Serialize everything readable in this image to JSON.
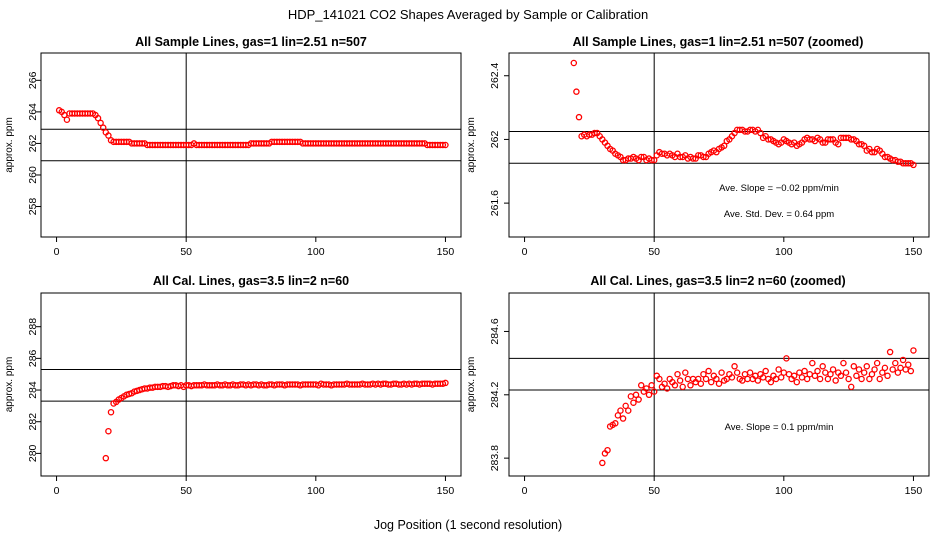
{
  "title": "HDP_141021  CO2 Shapes Averaged by Sample or Calibration",
  "xlabel": "Jog Position (1 second resolution)",
  "colors": {
    "points": "#ff0000",
    "axes": "#000000"
  },
  "chart_data": [
    {
      "type": "scatter",
      "title": "All Sample Lines, gas=1 lin=2.51 n=507",
      "ylabel": "approx. ppm",
      "xlim": [
        0,
        150
      ],
      "ylim": [
        256.5,
        267.3
      ],
      "xticks": [
        0,
        50,
        100,
        150
      ],
      "yticks": [
        258,
        260,
        262,
        264,
        266
      ],
      "hlines": [
        262.9,
        260.9
      ],
      "vlines": [
        50
      ],
      "x": [
        1,
        2,
        3,
        4,
        5,
        6,
        7,
        8,
        9,
        10,
        11,
        12,
        13,
        14,
        15,
        16,
        17,
        18,
        19,
        20,
        21,
        22,
        23,
        24,
        25,
        26,
        27,
        28,
        29,
        30,
        31,
        32,
        33,
        34,
        35,
        36,
        37,
        38,
        39,
        40,
        41,
        42,
        43,
        44,
        45,
        46,
        47,
        48,
        49,
        50,
        51,
        52,
        53,
        54,
        55,
        56,
        57,
        58,
        59,
        60,
        61,
        62,
        63,
        64,
        65,
        66,
        67,
        68,
        69,
        70,
        71,
        72,
        73,
        74,
        75,
        76,
        77,
        78,
        79,
        80,
        81,
        82,
        83,
        84,
        85,
        86,
        87,
        88,
        89,
        90,
        91,
        92,
        93,
        94,
        95,
        96,
        97,
        98,
        99,
        100,
        101,
        102,
        103,
        104,
        105,
        106,
        107,
        108,
        109,
        110,
        111,
        112,
        113,
        114,
        115,
        116,
        117,
        118,
        119,
        120,
        121,
        122,
        123,
        124,
        125,
        126,
        127,
        128,
        129,
        130,
        131,
        132,
        133,
        134,
        135,
        136,
        137,
        138,
        139,
        140,
        141,
        142,
        143,
        144,
        145,
        146,
        147,
        148,
        149,
        150
      ],
      "y": [
        264.1,
        264.0,
        263.8,
        263.5,
        263.9,
        263.9,
        263.9,
        263.9,
        263.9,
        263.9,
        263.9,
        263.9,
        263.9,
        263.9,
        263.8,
        263.6,
        263.3,
        263.0,
        262.7,
        262.5,
        262.2,
        262.1,
        262.1,
        262.1,
        262.1,
        262.1,
        262.1,
        262.1,
        262.0,
        262.0,
        262.0,
        262.0,
        262.0,
        262.0,
        261.9,
        261.9,
        261.9,
        261.9,
        261.9,
        261.9,
        261.9,
        261.9,
        261.9,
        261.9,
        261.9,
        261.9,
        261.9,
        261.9,
        261.9,
        261.9,
        261.9,
        261.9,
        262.0,
        261.9,
        261.9,
        261.9,
        261.9,
        261.9,
        261.9,
        261.9,
        261.9,
        261.9,
        261.9,
        261.9,
        261.9,
        261.9,
        261.9,
        261.9,
        261.9,
        261.9,
        261.9,
        261.9,
        261.9,
        261.9,
        262.0,
        262.0,
        262.0,
        262.0,
        262.0,
        262.0,
        262.0,
        262.0,
        262.1,
        262.1,
        262.1,
        262.1,
        262.1,
        262.1,
        262.1,
        262.1,
        262.1,
        262.1,
        262.1,
        262.1,
        262.0,
        262.0,
        262.0,
        262.0,
        262.0,
        262.0,
        262.0,
        262.0,
        262.0,
        262.0,
        262.0,
        262.0,
        262.0,
        262.0,
        262.0,
        262.0,
        262.0,
        262.0,
        262.0,
        262.0,
        262.0,
        262.0,
        262.0,
        262.0,
        262.0,
        262.0,
        262.0,
        262.0,
        262.0,
        262.0,
        262.0,
        262.0,
        262.0,
        262.0,
        262.0,
        262.0,
        262.0,
        262.0,
        262.0,
        262.0,
        262.0,
        262.0,
        262.0,
        262.0,
        262.0,
        262.0,
        262.0,
        262.0,
        261.9,
        261.9,
        261.9,
        261.9,
        261.9,
        261.9,
        261.9,
        261.9
      ]
    },
    {
      "type": "scatter",
      "title": "All Sample Lines, gas=1 lin=2.51 n=507 (zoomed)",
      "ylabel": "approx. ppm",
      "xlim": [
        0,
        150
      ],
      "ylim": [
        261.43,
        262.5
      ],
      "xticks": [
        0,
        50,
        100,
        150
      ],
      "yticks": [
        261.6,
        262.0,
        262.4
      ],
      "hlines": [
        262.05,
        261.85
      ],
      "vlines": [
        50
      ],
      "annotations": [
        "Ave. Slope =  −0.02  ppm/min",
        "Ave. Std. Dev. =  0.64  ppm"
      ],
      "x": [
        19,
        20,
        21,
        22,
        23,
        24,
        25,
        26,
        27,
        28,
        29,
        30,
        31,
        32,
        33,
        34,
        35,
        36,
        37,
        38,
        39,
        40,
        41,
        42,
        43,
        44,
        45,
        46,
        47,
        48,
        49,
        50,
        51,
        52,
        53,
        54,
        55,
        56,
        57,
        58,
        59,
        60,
        61,
        62,
        63,
        64,
        65,
        66,
        67,
        68,
        69,
        70,
        71,
        72,
        73,
        74,
        75,
        76,
        77,
        78,
        79,
        80,
        81,
        82,
        83,
        84,
        85,
        86,
        87,
        88,
        89,
        90,
        91,
        92,
        93,
        94,
        95,
        96,
        97,
        98,
        99,
        100,
        101,
        102,
        103,
        104,
        105,
        106,
        107,
        108,
        109,
        110,
        111,
        112,
        113,
        114,
        115,
        116,
        117,
        118,
        119,
        120,
        121,
        122,
        123,
        124,
        125,
        126,
        127,
        128,
        129,
        130,
        131,
        132,
        133,
        134,
        135,
        136,
        137,
        138,
        139,
        140,
        141,
        142,
        143,
        144,
        145,
        146,
        147,
        148,
        149,
        150
      ],
      "y": [
        262.48,
        262.3,
        262.14,
        262.02,
        262.03,
        262.02,
        262.03,
        262.03,
        262.04,
        262.04,
        262.02,
        262.0,
        261.98,
        261.96,
        261.94,
        261.93,
        261.91,
        261.9,
        261.89,
        261.87,
        261.87,
        261.88,
        261.88,
        261.89,
        261.88,
        261.87,
        261.89,
        261.89,
        261.87,
        261.88,
        261.87,
        261.87,
        261.9,
        261.92,
        261.91,
        261.91,
        261.9,
        261.91,
        261.9,
        261.89,
        261.91,
        261.89,
        261.89,
        261.9,
        261.88,
        261.89,
        261.88,
        261.88,
        261.9,
        261.9,
        261.89,
        261.89,
        261.91,
        261.92,
        261.93,
        261.92,
        261.94,
        261.95,
        261.96,
        261.99,
        262.0,
        262.02,
        262.04,
        262.06,
        262.06,
        262.06,
        262.05,
        262.05,
        262.06,
        262.06,
        262.05,
        262.06,
        262.04,
        262.01,
        262.02,
        262.0,
        262.0,
        261.99,
        261.98,
        261.97,
        261.98,
        262.0,
        261.99,
        261.98,
        261.97,
        261.98,
        261.96,
        261.97,
        261.98,
        262.0,
        262.01,
        262.0,
        262.0,
        261.99,
        262.01,
        262.0,
        261.98,
        261.98,
        262.0,
        262.0,
        262.0,
        261.98,
        261.97,
        262.01,
        262.01,
        262.01,
        262.01,
        262.0,
        262.0,
        261.99,
        261.97,
        261.97,
        261.96,
        261.93,
        261.94,
        261.92,
        261.92,
        261.94,
        261.93,
        261.91,
        261.89,
        261.89,
        261.88,
        261.87,
        261.87,
        261.86,
        261.86,
        261.85,
        261.85,
        261.85,
        261.85,
        261.84
      ]
    },
    {
      "type": "scatter",
      "title": "All Cal. Lines, gas=3.5 lin=2 n=60",
      "ylabel": "approx. ppm",
      "xlim": [
        0,
        150
      ],
      "ylim": [
        279.0,
        289.7
      ],
      "xticks": [
        0,
        50,
        100,
        150
      ],
      "yticks": [
        280,
        282,
        284,
        286,
        288
      ],
      "hlines": [
        285.3,
        283.3
      ],
      "vlines": [
        50
      ],
      "x": [
        19,
        20,
        21,
        22,
        23,
        24,
        25,
        26,
        27,
        28,
        29,
        30,
        31,
        32,
        33,
        34,
        35,
        36,
        37,
        38,
        39,
        40,
        41,
        42,
        43,
        44,
        45,
        46,
        47,
        48,
        49,
        50,
        51,
        52,
        53,
        54,
        55,
        56,
        57,
        58,
        59,
        60,
        61,
        62,
        63,
        64,
        65,
        66,
        67,
        68,
        69,
        70,
        71,
        72,
        73,
        74,
        75,
        76,
        77,
        78,
        79,
        80,
        81,
        82,
        83,
        84,
        85,
        86,
        87,
        88,
        89,
        90,
        91,
        92,
        93,
        94,
        95,
        96,
        97,
        98,
        99,
        100,
        101,
        102,
        103,
        104,
        105,
        106,
        107,
        108,
        109,
        110,
        111,
        112,
        113,
        114,
        115,
        116,
        117,
        118,
        119,
        120,
        121,
        122,
        123,
        124,
        125,
        126,
        127,
        128,
        129,
        130,
        131,
        132,
        133,
        134,
        135,
        136,
        137,
        138,
        139,
        140,
        141,
        142,
        143,
        144,
        145,
        146,
        147,
        148,
        149,
        150
      ],
      "y": [
        279.7,
        281.4,
        282.6,
        283.15,
        283.25,
        283.4,
        283.5,
        283.6,
        283.7,
        283.75,
        283.8,
        283.9,
        283.95,
        284.0,
        284.05,
        284.1,
        284.1,
        284.15,
        284.15,
        284.2,
        284.2,
        284.2,
        284.25,
        284.25,
        284.2,
        284.25,
        284.3,
        284.3,
        284.25,
        284.3,
        284.2,
        284.3,
        284.3,
        284.25,
        284.3,
        284.3,
        284.3,
        284.3,
        284.35,
        284.3,
        284.3,
        284.3,
        284.3,
        284.35,
        284.3,
        284.3,
        284.35,
        284.3,
        284.3,
        284.35,
        284.3,
        284.3,
        284.35,
        284.35,
        284.3,
        284.35,
        284.3,
        284.35,
        284.35,
        284.3,
        284.35,
        284.3,
        284.3,
        284.35,
        284.35,
        284.3,
        284.35,
        284.35,
        284.35,
        284.3,
        284.35,
        284.35,
        284.35,
        284.35,
        284.35,
        284.3,
        284.35,
        284.35,
        284.35,
        284.35,
        284.35,
        284.35,
        284.3,
        284.4,
        284.35,
        284.35,
        284.35,
        284.3,
        284.35,
        284.35,
        284.35,
        284.35,
        284.35,
        284.4,
        284.35,
        284.35,
        284.35,
        284.35,
        284.35,
        284.4,
        284.35,
        284.35,
        284.35,
        284.4,
        284.35,
        284.4,
        284.35,
        284.4,
        284.4,
        284.35,
        284.35,
        284.4,
        284.4,
        284.35,
        284.35,
        284.4,
        284.35,
        284.4,
        284.35,
        284.4,
        284.4,
        284.35,
        284.4,
        284.4,
        284.4,
        284.4,
        284.35,
        284.4,
        284.4,
        284.4,
        284.4,
        284.45
      ]
    },
    {
      "type": "scatter",
      "title": "All Cal. Lines, gas=3.5 lin=2 n=60 (zoomed)",
      "ylabel": "approx. ppm",
      "xlim": [
        0,
        150
      ],
      "ylim": [
        283.73,
        284.8
      ],
      "xticks": [
        0,
        50,
        100,
        150
      ],
      "yticks": [
        283.8,
        284.2,
        284.6
      ],
      "hlines": [
        284.43,
        284.23
      ],
      "vlines": [
        50
      ],
      "annotations": [
        "Ave. Slope =  0.1  ppm/min"
      ],
      "x": [
        30,
        31,
        32,
        33,
        34,
        35,
        36,
        37,
        38,
        39,
        40,
        41,
        42,
        43,
        44,
        45,
        46,
        47,
        48,
        49,
        50,
        51,
        52,
        53,
        54,
        55,
        56,
        57,
        58,
        59,
        60,
        61,
        62,
        63,
        64,
        65,
        66,
        67,
        68,
        69,
        70,
        71,
        72,
        73,
        74,
        75,
        76,
        77,
        78,
        79,
        80,
        81,
        82,
        83,
        84,
        85,
        86,
        87,
        88,
        89,
        90,
        91,
        92,
        93,
        94,
        95,
        96,
        97,
        98,
        99,
        100,
        101,
        102,
        103,
        104,
        105,
        106,
        107,
        108,
        109,
        110,
        111,
        112,
        113,
        114,
        115,
        116,
        117,
        118,
        119,
        120,
        121,
        122,
        123,
        124,
        125,
        126,
        127,
        128,
        129,
        130,
        131,
        132,
        133,
        134,
        135,
        136,
        137,
        138,
        139,
        140,
        141,
        142,
        143,
        144,
        145,
        146,
        147,
        148,
        149,
        150
      ],
      "y": [
        283.77,
        283.83,
        283.85,
        284.0,
        284.01,
        284.02,
        284.07,
        284.1,
        284.05,
        284.13,
        284.1,
        284.19,
        284.15,
        284.2,
        284.17,
        284.26,
        284.22,
        284.24,
        284.2,
        284.26,
        284.22,
        284.32,
        284.3,
        284.25,
        284.27,
        284.24,
        284.3,
        284.28,
        284.26,
        284.33,
        284.29,
        284.25,
        284.34,
        284.3,
        284.26,
        284.3,
        284.28,
        284.3,
        284.27,
        284.33,
        284.3,
        284.35,
        284.28,
        284.32,
        284.3,
        284.27,
        284.34,
        284.29,
        284.3,
        284.33,
        284.31,
        284.38,
        284.34,
        284.3,
        284.29,
        284.33,
        284.3,
        284.34,
        284.3,
        284.32,
        284.29,
        284.33,
        284.31,
        284.35,
        284.3,
        284.28,
        284.32,
        284.3,
        284.36,
        284.31,
        284.34,
        284.43,
        284.33,
        284.3,
        284.32,
        284.28,
        284.34,
        284.31,
        284.35,
        284.3,
        284.33,
        284.4,
        284.32,
        284.35,
        284.3,
        284.38,
        284.34,
        284.3,
        284.33,
        284.36,
        284.29,
        284.34,
        284.32,
        284.4,
        284.34,
        284.3,
        284.25,
        284.38,
        284.32,
        284.36,
        284.3,
        284.34,
        284.38,
        284.3,
        284.33,
        284.36,
        284.4,
        284.3,
        284.34,
        284.37,
        284.32,
        284.47,
        284.36,
        284.4,
        284.34,
        284.37,
        284.42,
        284.36,
        284.39,
        284.35,
        284.48
      ]
    }
  ]
}
